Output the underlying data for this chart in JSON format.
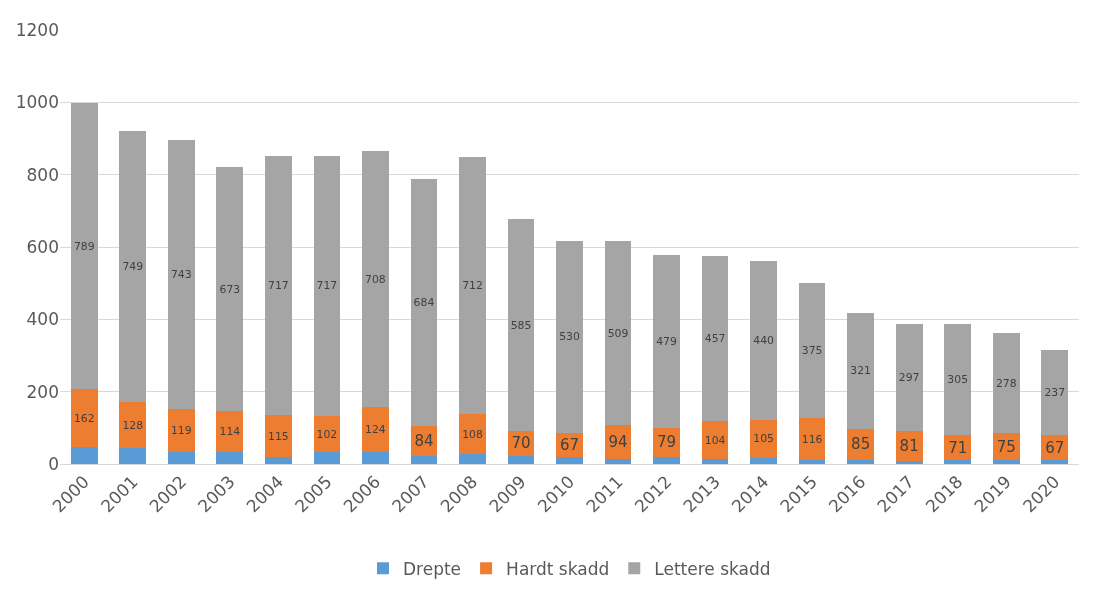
{
  "chart_data": {
    "type": "bar",
    "stacked": true,
    "categories": [
      "2000",
      "2001",
      "2002",
      "2003",
      "2004",
      "2005",
      "2006",
      "2007",
      "2008",
      "2009",
      "2010",
      "2011",
      "2012",
      "2013",
      "2014",
      "2015",
      "2016",
      "2017",
      "2018",
      "2019",
      "2020"
    ],
    "series": [
      {
        "name": "Drepte",
        "color": "#5b9bd5",
        "values": [
          46,
          43,
          33,
          33,
          20,
          32,
          33,
          21,
          29,
          22,
          20,
          14,
          20,
          14,
          17,
          10,
          12,
          9,
          10,
          10,
          12
        ]
      },
      {
        "name": "Hardt skadd",
        "color": "#ed7d31",
        "values": [
          162,
          128,
          119,
          114,
          115,
          102,
          124,
          84,
          108,
          70,
          67,
          94,
          79,
          104,
          105,
          116,
          85,
          81,
          71,
          75,
          67
        ],
        "value_labels": [
          "162",
          "128",
          "119",
          "114",
          "115",
          "102",
          "124",
          "84",
          "108",
          "70",
          "67",
          "94",
          "79",
          "104",
          "105",
          "116",
          "85",
          "81",
          "71",
          "75",
          "67"
        ]
      },
      {
        "name": "Lettere skadd",
        "color": "#a5a5a5",
        "values": [
          789,
          749,
          743,
          673,
          717,
          717,
          708,
          684,
          712,
          585,
          530,
          509,
          479,
          457,
          440,
          375,
          321,
          297,
          305,
          278,
          237
        ],
        "value_labels": [
          "789",
          "749",
          "743",
          "673",
          "717",
          "717",
          "708",
          "684",
          "712",
          "585",
          "530",
          "509",
          "479",
          "457",
          "440",
          "375",
          "321",
          "297",
          "305",
          "278",
          "237"
        ]
      }
    ],
    "ylim": [
      0,
      1200
    ],
    "yticks": [
      0,
      200,
      400,
      600,
      800,
      1000,
      1200
    ],
    "grid": "y",
    "legend": "bottom"
  }
}
